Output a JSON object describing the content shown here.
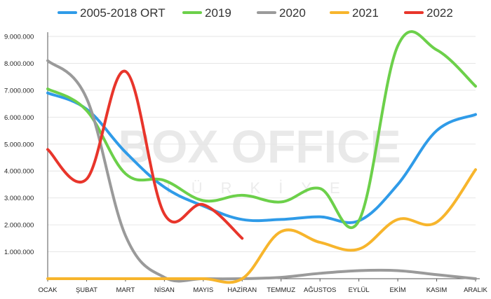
{
  "chart_data": {
    "type": "line",
    "title": "",
    "xlabel": "",
    "ylabel": "",
    "categories": [
      "OCAK",
      "ŞUBAT",
      "MART",
      "NİSAN",
      "MAYIS",
      "HAZİRAN",
      "TEMMUZ",
      "AĞUSTOS",
      "EYLÜL",
      "EKİM",
      "KASIM",
      "ARALIK"
    ],
    "ylim": [
      0,
      9000000
    ],
    "yticks": [
      0,
      1000000,
      2000000,
      3000000,
      4000000,
      5000000,
      6000000,
      7000000,
      8000000,
      9000000
    ],
    "ytick_labels": [
      "",
      "1.000.000",
      "2.000.000",
      "3.000.000",
      "4.000.000",
      "5.000.000",
      "6.000.000",
      "7.000.000",
      "8.000.000",
      "9.000.000"
    ],
    "grid": true,
    "legend_position": "top",
    "series": [
      {
        "name": "2005-2018 ORT",
        "color": "#2f9be8",
        "values": [
          6900000,
          6300000,
          4700000,
          3400000,
          2700000,
          2200000,
          2200000,
          2300000,
          2150000,
          3500000,
          5500000,
          6100000
        ]
      },
      {
        "name": "2019",
        "color": "#6cd04a",
        "values": [
          7050000,
          6250000,
          3900000,
          3650000,
          2900000,
          3100000,
          2850000,
          3350000,
          2150000,
          8650000,
          8500000,
          7150000
        ]
      },
      {
        "name": "2020",
        "color": "#9a9a9a",
        "values": [
          8100000,
          6700000,
          1600000,
          50000,
          0,
          0,
          50000,
          200000,
          300000,
          300000,
          150000,
          0
        ]
      },
      {
        "name": "2021",
        "color": "#f7b52c",
        "values": [
          0,
          0,
          0,
          0,
          0,
          0,
          1750000,
          1350000,
          1100000,
          2200000,
          2100000,
          4050000
        ]
      },
      {
        "name": "2022",
        "color": "#e8352b",
        "values": [
          4800000,
          3700000,
          7700000,
          2400000,
          2750000,
          1500000,
          null,
          null,
          null,
          null,
          null,
          null
        ]
      }
    ]
  },
  "watermark": {
    "main": "BOX OFFICE",
    "sub": "TÜRKİYE"
  }
}
